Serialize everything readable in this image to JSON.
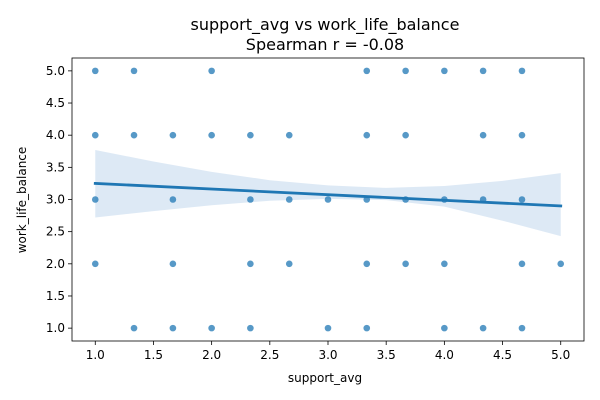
{
  "chart_data": {
    "type": "scatter",
    "title": "support_avg vs work_life_balance",
    "subtitle": "Spearman r = -0.08",
    "xlabel": "support_avg",
    "ylabel": "work_life_balance",
    "xlim": [
      0.8,
      5.2
    ],
    "ylim": [
      0.8,
      5.2
    ],
    "xticks": [
      1.0,
      1.5,
      2.0,
      2.5,
      3.0,
      3.5,
      4.0,
      4.5,
      5.0
    ],
    "yticks": [
      1.0,
      1.5,
      2.0,
      2.5,
      3.0,
      3.5,
      4.0,
      4.5,
      5.0
    ],
    "x_tick_labels": [
      "1.0",
      "1.5",
      "2.0",
      "2.5",
      "3.0",
      "3.5",
      "4.0",
      "4.5",
      "5.0"
    ],
    "y_tick_labels": [
      "1.0",
      "1.5",
      "2.0",
      "2.5",
      "3.0",
      "3.5",
      "4.0",
      "4.5",
      "5.0"
    ],
    "point_color": "#1f77b4",
    "line_color": "#1f77b4",
    "band_color": "#c6dbef",
    "points": [
      [
        1.0,
        5.0
      ],
      [
        1.333,
        5.0
      ],
      [
        2.0,
        5.0
      ],
      [
        3.333,
        5.0
      ],
      [
        3.667,
        5.0
      ],
      [
        4.0,
        5.0
      ],
      [
        4.333,
        5.0
      ],
      [
        4.667,
        5.0
      ],
      [
        1.0,
        4.0
      ],
      [
        1.333,
        4.0
      ],
      [
        1.667,
        4.0
      ],
      [
        2.0,
        4.0
      ],
      [
        2.333,
        4.0
      ],
      [
        2.667,
        4.0
      ],
      [
        3.333,
        4.0
      ],
      [
        3.667,
        4.0
      ],
      [
        4.333,
        4.0
      ],
      [
        4.667,
        4.0
      ],
      [
        1.0,
        3.0
      ],
      [
        1.667,
        3.0
      ],
      [
        2.333,
        3.0
      ],
      [
        2.667,
        3.0
      ],
      [
        3.0,
        3.0
      ],
      [
        3.333,
        3.0
      ],
      [
        3.667,
        3.0
      ],
      [
        4.0,
        3.0
      ],
      [
        4.333,
        3.0
      ],
      [
        4.667,
        3.0
      ],
      [
        1.0,
        2.0
      ],
      [
        1.667,
        2.0
      ],
      [
        2.333,
        2.0
      ],
      [
        2.667,
        2.0
      ],
      [
        3.333,
        2.0
      ],
      [
        3.667,
        2.0
      ],
      [
        4.0,
        2.0
      ],
      [
        4.667,
        2.0
      ],
      [
        5.0,
        2.0
      ],
      [
        1.333,
        1.0
      ],
      [
        1.667,
        1.0
      ],
      [
        2.0,
        1.0
      ],
      [
        2.333,
        1.0
      ],
      [
        3.0,
        1.0
      ],
      [
        3.333,
        1.0
      ],
      [
        4.0,
        1.0
      ],
      [
        4.333,
        1.0
      ],
      [
        4.667,
        1.0
      ]
    ],
    "regression": {
      "x": [
        1.0,
        5.0
      ],
      "y": [
        3.25,
        2.9
      ]
    },
    "confidence_band": {
      "x": [
        1.0,
        1.5,
        2.0,
        2.5,
        3.0,
        3.5,
        4.0,
        4.5,
        5.0
      ],
      "upper": [
        3.77,
        3.59,
        3.43,
        3.3,
        3.22,
        3.18,
        3.21,
        3.29,
        3.41
      ],
      "lower": [
        2.72,
        2.82,
        2.91,
        2.98,
        3.01,
        2.99,
        2.89,
        2.67,
        2.43
      ]
    },
    "grid": false,
    "legend": "none"
  }
}
